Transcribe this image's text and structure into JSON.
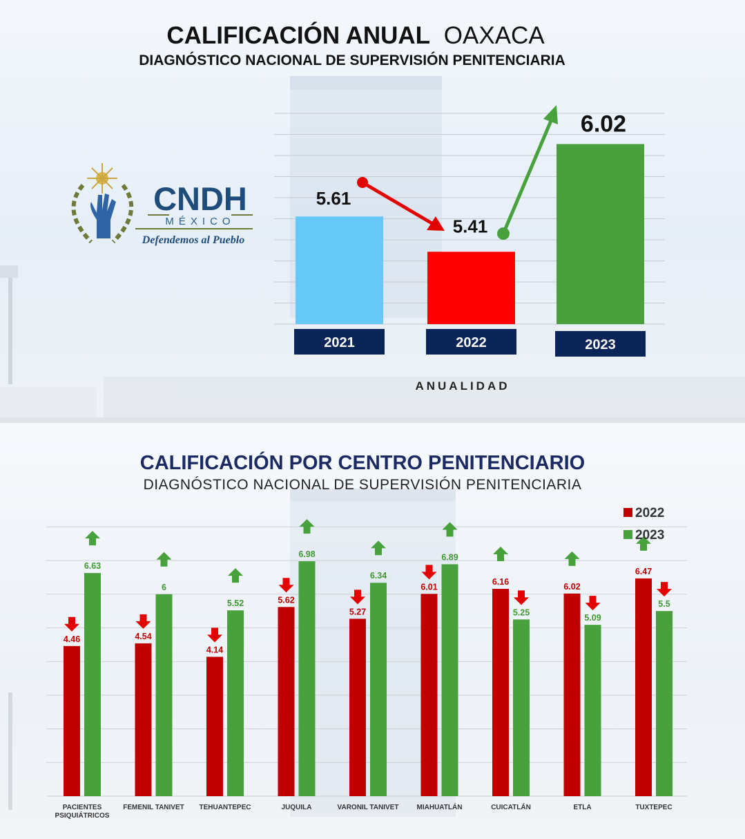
{
  "top": {
    "title_bold": "CALIFICACIÓN ANUAL",
    "title_light": "OAXACA",
    "subtitle": "DIAGNÓSTICO NACIONAL DE SUPERVISIÓN PENITENCIARIA",
    "xlabel": "ANUALIDAD"
  },
  "logo": {
    "name": "CNDH",
    "country": "MÉXICO",
    "motto": "Defendemos al Pueblo"
  },
  "bottom": {
    "title": "CALIFICACIÓN POR CENTRO PENITENCIARIO",
    "subtitle": "DIAGNÓSTICO NACIONAL DE SUPERVISIÓN PENITENCIARIA"
  },
  "chart_data": [
    {
      "type": "bar",
      "title": "CALIFICACIÓN ANUAL OAXACA",
      "xlabel": "ANUALIDAD",
      "categories": [
        "2021",
        "2022",
        "2023"
      ],
      "values": [
        5.61,
        5.41,
        6.02
      ],
      "value_labels": [
        "5.61",
        "5.41",
        "6.02"
      ],
      "colors": [
        "#66c8f6",
        "#ff0000",
        "#48a13c"
      ],
      "ylim": [
        5.0,
        6.1
      ],
      "grid": true,
      "annotations": [
        "arrow-down 2021→2022",
        "arrow-up 2022→2023"
      ]
    },
    {
      "type": "bar",
      "title": "CALIFICACIÓN POR CENTRO PENITENCIARIO",
      "categories": [
        [
          "PACIENTES",
          "PSIQUIÁTRICOS"
        ],
        [
          "FEMENIL TANIVET"
        ],
        [
          "TEHUANTEPEC"
        ],
        [
          "JUQUILA"
        ],
        [
          "VARONIL TANIVET"
        ],
        [
          "MIAHUATLÁN"
        ],
        [
          "CUICATLÁN"
        ],
        [
          "ETLA"
        ],
        [
          "TUXTEPEC"
        ]
      ],
      "series": [
        {
          "name": "2022",
          "color": "#c00000",
          "values": [
            4.46,
            4.54,
            4.14,
            5.62,
            5.27,
            6.01,
            6.16,
            6.02,
            6.47
          ],
          "labels": [
            "4.46",
            "4.54",
            "4.14",
            "5.62",
            "5.27",
            "6.01",
            "6.16",
            "6.02",
            "6.47"
          ]
        },
        {
          "name": "2023",
          "color": "#48a13c",
          "values": [
            6.63,
            6.0,
            5.52,
            6.98,
            6.34,
            6.89,
            5.25,
            5.09,
            5.5
          ],
          "labels": [
            "6.63",
            "6",
            "5.52",
            "6.98",
            "6.34",
            "6.89",
            "5.25",
            "5.09",
            "5.5"
          ]
        }
      ],
      "ylim": [
        0,
        8
      ],
      "grid": true,
      "legend": "top-right"
    }
  ]
}
